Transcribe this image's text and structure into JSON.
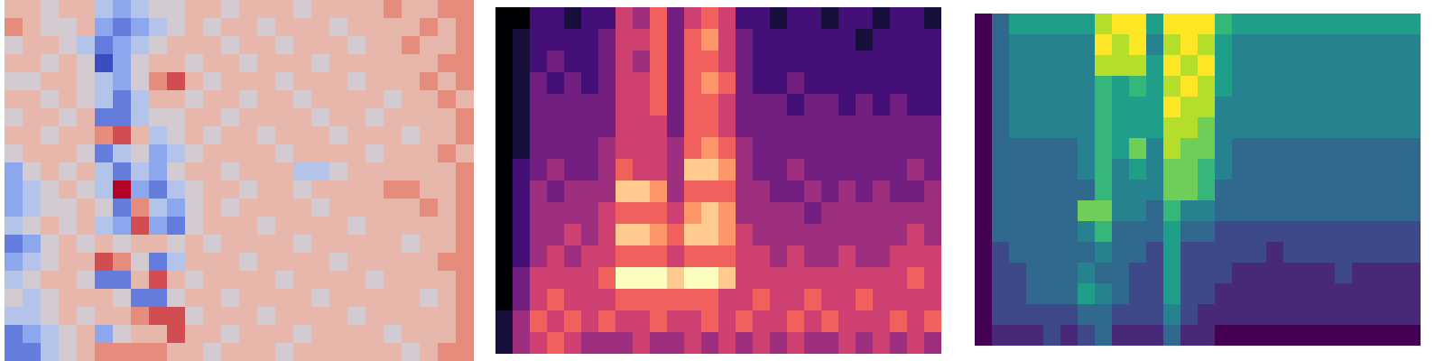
{
  "chart_data": [
    {
      "type": "heatmap",
      "color": "coolwarm",
      "zlim": [
        -4,
        4
      ],
      "tick_labels": false,
      "cells": [
        [
          1,
          1,
          0,
          1,
          1,
          -1,
          -2,
          -1,
          0,
          0,
          1,
          1,
          0,
          1,
          1,
          1,
          0,
          1,
          1,
          1,
          1,
          2,
          1,
          1,
          2,
          2
        ],
        [
          2,
          1,
          0,
          0,
          1,
          -2,
          -3,
          -2,
          -1,
          0,
          1,
          0,
          1,
          1,
          0,
          1,
          1,
          1,
          0,
          1,
          1,
          1,
          1,
          2,
          1,
          2
        ],
        [
          0,
          1,
          1,
          0,
          -1,
          -3,
          -2,
          -1,
          0,
          1,
          1,
          1,
          0,
          1,
          1,
          0,
          1,
          1,
          1,
          0,
          1,
          1,
          2,
          1,
          1,
          2
        ],
        [
          1,
          1,
          0,
          1,
          0,
          -4,
          -2,
          0,
          1,
          1,
          0,
          1,
          1,
          0,
          1,
          1,
          1,
          0,
          1,
          1,
          1,
          1,
          1,
          1,
          2,
          2
        ],
        [
          0,
          0,
          1,
          1,
          0,
          -1,
          -2,
          0,
          2,
          3,
          1,
          0,
          1,
          1,
          1,
          0,
          1,
          1,
          1,
          0,
          1,
          1,
          1,
          2,
          1,
          2
        ],
        [
          1,
          1,
          0,
          1,
          0,
          -1,
          -3,
          -1,
          1,
          1,
          0,
          1,
          1,
          0,
          1,
          1,
          0,
          1,
          1,
          1,
          1,
          0,
          1,
          1,
          2,
          1
        ],
        [
          0,
          1,
          1,
          0,
          1,
          -3,
          -3,
          -1,
          0,
          0,
          1,
          1,
          0,
          1,
          1,
          1,
          1,
          0,
          1,
          1,
          0,
          1,
          1,
          1,
          1,
          2
        ],
        [
          1,
          1,
          0,
          1,
          1,
          2,
          3,
          1,
          -1,
          0,
          1,
          0,
          1,
          1,
          0,
          1,
          1,
          1,
          0,
          1,
          1,
          1,
          0,
          1,
          1,
          2
        ],
        [
          0,
          1,
          1,
          1,
          0,
          -3,
          -1,
          0,
          -2,
          -1,
          0,
          1,
          1,
          1,
          1,
          0,
          1,
          1,
          1,
          1,
          0,
          1,
          1,
          1,
          2,
          1
        ],
        [
          -2,
          0,
          1,
          0,
          1,
          -1,
          -3,
          -1,
          -2,
          0,
          1,
          1,
          0,
          1,
          1,
          1,
          -1,
          -1,
          0,
          1,
          1,
          1,
          1,
          1,
          1,
          2
        ],
        [
          -2,
          -1,
          0,
          1,
          0,
          -1,
          4,
          -2,
          -3,
          -1,
          0,
          1,
          1,
          0,
          1,
          1,
          0,
          1,
          1,
          1,
          1,
          2,
          2,
          1,
          1,
          2
        ],
        [
          -2,
          -1,
          0,
          0,
          1,
          0,
          -3,
          2,
          -1,
          -2,
          0,
          1,
          0,
          1,
          1,
          1,
          1,
          0,
          1,
          1,
          1,
          1,
          1,
          2,
          1,
          2
        ],
        [
          -1,
          0,
          1,
          0,
          1,
          -1,
          -2,
          3,
          -2,
          -3,
          0,
          1,
          1,
          1,
          0,
          1,
          1,
          1,
          1,
          0,
          1,
          1,
          1,
          1,
          1,
          2
        ],
        [
          -3,
          -2,
          0,
          1,
          0,
          1,
          0,
          1,
          1,
          0,
          1,
          0,
          1,
          1,
          1,
          1,
          0,
          1,
          1,
          1,
          1,
          1,
          0,
          1,
          1,
          2
        ],
        [
          -2,
          -1,
          0,
          1,
          1,
          3,
          2,
          0,
          -3,
          -1,
          1,
          1,
          1,
          0,
          1,
          1,
          1,
          1,
          0,
          1,
          1,
          1,
          1,
          1,
          2,
          2
        ],
        [
          -1,
          0,
          1,
          1,
          0,
          -3,
          -3,
          1,
          3,
          1,
          0,
          1,
          1,
          1,
          1,
          0,
          1,
          1,
          1,
          1,
          0,
          1,
          1,
          1,
          1,
          2
        ],
        [
          0,
          -1,
          0,
          1,
          1,
          1,
          0,
          -3,
          -3,
          0,
          1,
          1,
          0,
          1,
          1,
          1,
          1,
          0,
          1,
          1,
          1,
          1,
          1,
          0,
          1,
          2
        ],
        [
          -1,
          -1,
          0,
          1,
          0,
          1,
          1,
          2,
          3,
          3,
          0,
          1,
          1,
          1,
          0,
          1,
          1,
          1,
          1,
          0,
          1,
          1,
          1,
          1,
          1,
          2
        ],
        [
          -3,
          -2,
          -1,
          0,
          1,
          -2,
          0,
          1,
          1,
          3,
          1,
          1,
          0,
          1,
          1,
          1,
          0,
          1,
          1,
          1,
          1,
          0,
          1,
          1,
          1,
          2
        ],
        [
          -3,
          -3,
          -1,
          0,
          1,
          2,
          2,
          2,
          2,
          1,
          1,
          0,
          1,
          1,
          1,
          0,
          1,
          1,
          1,
          1,
          1,
          1,
          0,
          1,
          2,
          2
        ]
      ]
    },
    {
      "type": "heatmap",
      "color": "magma",
      "zlim": [
        0,
        9
      ],
      "tick_labels": false,
      "cells": [
        [
          0,
          0,
          2,
          2,
          1,
          2,
          2,
          5,
          4,
          6,
          3,
          5,
          6,
          5,
          2,
          2,
          1,
          2,
          2,
          1,
          2,
          2,
          1,
          2,
          2,
          1
        ],
        [
          0,
          1,
          2,
          2,
          2,
          2,
          3,
          5,
          5,
          6,
          3,
          6,
          7,
          5,
          3,
          2,
          2,
          2,
          2,
          2,
          2,
          1,
          2,
          2,
          2,
          2
        ],
        [
          0,
          1,
          2,
          3,
          2,
          2,
          3,
          5,
          4,
          6,
          3,
          6,
          6,
          5,
          3,
          2,
          2,
          2,
          2,
          2,
          2,
          2,
          2,
          2,
          2,
          2
        ],
        [
          0,
          1,
          3,
          2,
          3,
          2,
          3,
          5,
          5,
          6,
          3,
          6,
          7,
          6,
          3,
          2,
          2,
          3,
          2,
          2,
          2,
          2,
          2,
          2,
          2,
          2
        ],
        [
          0,
          1,
          3,
          3,
          3,
          3,
          3,
          5,
          5,
          6,
          3,
          6,
          6,
          5,
          3,
          3,
          3,
          2,
          3,
          3,
          2,
          3,
          2,
          3,
          2,
          2
        ],
        [
          0,
          1,
          3,
          3,
          3,
          3,
          3,
          5,
          5,
          5,
          3,
          6,
          6,
          5,
          3,
          3,
          3,
          3,
          3,
          3,
          3,
          3,
          3,
          3,
          3,
          3
        ],
        [
          0,
          1,
          3,
          3,
          3,
          3,
          4,
          5,
          5,
          5,
          4,
          6,
          7,
          6,
          4,
          3,
          3,
          3,
          3,
          3,
          3,
          3,
          3,
          3,
          3,
          3
        ],
        [
          0,
          2,
          3,
          4,
          3,
          3,
          4,
          6,
          5,
          5,
          4,
          8,
          8,
          7,
          4,
          3,
          3,
          4,
          3,
          3,
          3,
          3,
          3,
          3,
          4,
          3
        ],
        [
          0,
          2,
          4,
          3,
          4,
          4,
          4,
          8,
          8,
          7,
          4,
          6,
          6,
          6,
          4,
          4,
          3,
          3,
          4,
          3,
          4,
          3,
          4,
          3,
          3,
          4
        ],
        [
          0,
          2,
          4,
          4,
          4,
          4,
          5,
          6,
          6,
          6,
          5,
          7,
          8,
          7,
          4,
          4,
          4,
          4,
          3,
          4,
          4,
          4,
          4,
          4,
          4,
          4
        ],
        [
          0,
          2,
          4,
          4,
          5,
          4,
          5,
          8,
          8,
          7,
          6,
          8,
          8,
          7,
          5,
          4,
          4,
          4,
          4,
          4,
          4,
          4,
          4,
          4,
          5,
          4
        ],
        [
          0,
          2,
          4,
          5,
          4,
          5,
          5,
          6,
          6,
          6,
          5,
          6,
          6,
          6,
          5,
          5,
          4,
          5,
          4,
          4,
          5,
          4,
          4,
          5,
          5,
          5
        ],
        [
          0,
          3,
          5,
          5,
          5,
          5,
          6,
          9,
          9,
          9,
          8,
          9,
          9,
          8,
          5,
          5,
          5,
          5,
          5,
          5,
          5,
          5,
          5,
          5,
          6,
          5
        ],
        [
          0,
          3,
          5,
          6,
          5,
          5,
          5,
          6,
          6,
          6,
          6,
          6,
          6,
          5,
          5,
          6,
          5,
          5,
          6,
          5,
          5,
          6,
          5,
          5,
          5,
          5
        ],
        [
          1,
          4,
          6,
          5,
          6,
          5,
          6,
          5,
          5,
          6,
          5,
          5,
          6,
          5,
          6,
          5,
          5,
          6,
          5,
          6,
          5,
          5,
          5,
          6,
          5,
          6
        ],
        [
          1,
          4,
          5,
          6,
          5,
          4,
          4,
          4,
          5,
          4,
          4,
          5,
          4,
          5,
          4,
          5,
          4,
          5,
          4,
          4,
          5,
          4,
          5,
          4,
          5,
          4
        ]
      ]
    },
    {
      "type": "heatmap",
      "color": "viridis",
      "zlim": [
        0,
        9
      ],
      "tick_labels": false,
      "cells": [
        [
          0,
          3,
          5,
          5,
          5,
          5,
          5,
          8,
          9,
          9,
          5,
          9,
          9,
          9,
          6,
          5,
          5,
          5,
          5,
          5,
          5,
          5,
          5,
          5,
          5,
          5
        ],
        [
          0,
          3,
          4,
          4,
          4,
          4,
          4,
          9,
          8,
          9,
          4,
          8,
          9,
          8,
          5,
          4,
          4,
          4,
          4,
          4,
          4,
          4,
          4,
          4,
          4,
          4
        ],
        [
          0,
          3,
          4,
          4,
          4,
          4,
          4,
          8,
          8,
          8,
          5,
          9,
          8,
          9,
          5,
          4,
          4,
          4,
          4,
          4,
          4,
          4,
          4,
          4,
          4,
          4
        ],
        [
          0,
          3,
          4,
          4,
          4,
          4,
          4,
          6,
          5,
          6,
          5,
          8,
          9,
          8,
          5,
          4,
          4,
          4,
          4,
          4,
          4,
          4,
          4,
          4,
          4,
          4
        ],
        [
          0,
          3,
          4,
          4,
          4,
          4,
          4,
          6,
          5,
          5,
          5,
          9,
          8,
          8,
          4,
          4,
          4,
          4,
          4,
          4,
          4,
          4,
          4,
          4,
          4,
          4
        ],
        [
          0,
          3,
          4,
          4,
          4,
          4,
          4,
          6,
          5,
          5,
          5,
          8,
          8,
          7,
          4,
          4,
          4,
          4,
          4,
          4,
          4,
          4,
          4,
          4,
          4,
          4
        ],
        [
          0,
          3,
          3,
          3,
          3,
          3,
          4,
          6,
          5,
          7,
          4,
          8,
          7,
          7,
          4,
          3,
          3,
          3,
          3,
          3,
          3,
          3,
          3,
          3,
          3,
          3
        ],
        [
          0,
          3,
          3,
          3,
          3,
          3,
          4,
          6,
          4,
          5,
          4,
          7,
          7,
          6,
          4,
          3,
          3,
          3,
          3,
          3,
          3,
          3,
          3,
          3,
          3,
          3
        ],
        [
          0,
          3,
          3,
          3,
          3,
          3,
          3,
          6,
          4,
          4,
          4,
          7,
          7,
          6,
          3,
          3,
          3,
          3,
          3,
          3,
          3,
          3,
          3,
          3,
          3,
          3
        ],
        [
          0,
          3,
          3,
          3,
          3,
          3,
          7,
          7,
          4,
          4,
          3,
          6,
          4,
          4,
          3,
          3,
          3,
          3,
          3,
          3,
          3,
          3,
          3,
          3,
          3,
          3
        ],
        [
          0,
          3,
          3,
          3,
          3,
          3,
          4,
          6,
          3,
          3,
          3,
          5,
          3,
          3,
          2,
          2,
          2,
          2,
          2,
          2,
          2,
          2,
          2,
          2,
          2,
          2
        ],
        [
          0,
          2,
          3,
          3,
          3,
          3,
          3,
          4,
          3,
          3,
          2,
          5,
          2,
          2,
          2,
          2,
          2,
          1,
          2,
          2,
          2,
          2,
          2,
          2,
          2,
          2
        ],
        [
          0,
          2,
          2,
          3,
          3,
          3,
          4,
          3,
          3,
          2,
          2,
          5,
          2,
          2,
          2,
          1,
          1,
          1,
          1,
          1,
          1,
          2,
          1,
          1,
          1,
          1
        ],
        [
          0,
          2,
          2,
          3,
          3,
          3,
          5,
          4,
          3,
          2,
          2,
          5,
          2,
          2,
          1,
          1,
          1,
          1,
          1,
          1,
          1,
          1,
          1,
          1,
          1,
          1
        ],
        [
          0,
          2,
          2,
          2,
          2,
          2,
          3,
          3,
          2,
          2,
          2,
          4,
          2,
          1,
          1,
          1,
          1,
          1,
          1,
          1,
          1,
          1,
          1,
          1,
          1,
          1
        ],
        [
          0,
          1,
          1,
          1,
          2,
          1,
          2,
          3,
          1,
          1,
          1,
          3,
          1,
          1,
          0,
          0,
          0,
          0,
          0,
          0,
          0,
          0,
          0,
          0,
          0,
          0
        ]
      ]
    }
  ]
}
